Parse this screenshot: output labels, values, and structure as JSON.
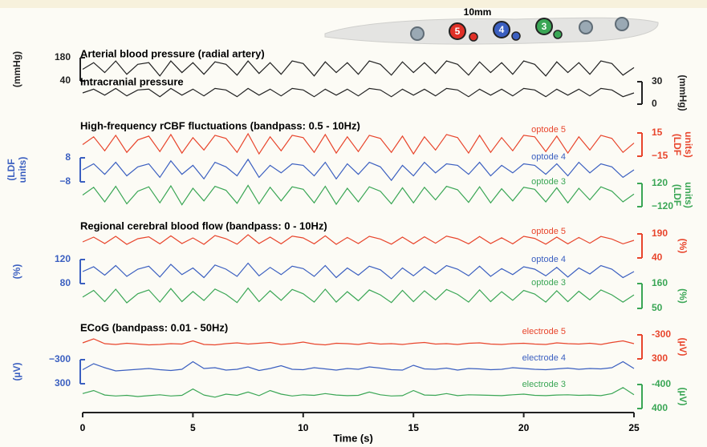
{
  "chart_data": {
    "type": "line",
    "probe": {
      "scale": "10mm",
      "labels": [
        "5",
        "4",
        "3"
      ]
    },
    "x": [
      0,
      0.5,
      1,
      1.5,
      2,
      2.5,
      3,
      3.5,
      4,
      4.5,
      5,
      5.5,
      6,
      6.5,
      7,
      7.5,
      8,
      8.5,
      9,
      9.5,
      10,
      10.5,
      11,
      11.5,
      12,
      12.5,
      13,
      13.5,
      14,
      14.5,
      15,
      15.5,
      16,
      16.5,
      17,
      17.5,
      18,
      18.5,
      19,
      19.5,
      20,
      20.5,
      21,
      21.5,
      22,
      22.5,
      23,
      23.5,
      24,
      24.5,
      25
    ],
    "xlim": [
      0,
      25
    ],
    "xticks": [
      0,
      5,
      10,
      15,
      20,
      25
    ],
    "xlabel": "Time (s)",
    "panels": [
      {
        "series": [
          {
            "name": "Arterial blood pressure (radial artery)",
            "color": "#222222",
            "side": "left",
            "unit": [
              "(mmHg)"
            ],
            "ylim": [
              40,
              180
            ],
            "yticks": [
              180,
              40
            ],
            "values": [
              110,
              150,
              90,
              160,
              80,
              140,
              150,
              70,
              160,
              90,
              150,
              80,
              155,
              140,
              75,
              160,
              85,
              150,
              80,
              160,
              145,
              70,
              155,
              90,
              150,
              80,
              160,
              140,
              75,
              155,
              90,
              150,
              85,
              160,
              140,
              75,
              155,
              90,
              150,
              80,
              160,
              140,
              70,
              155,
              90,
              150,
              80,
              160,
              145,
              75,
              120
            ]
          },
          {
            "name": "Intracranial pressure",
            "color": "#222222",
            "side": "right",
            "unit": [
              "(mmHg)"
            ],
            "ylim": [
              0,
              30
            ],
            "yticks": [
              30,
              0
            ],
            "values": [
              15,
              20,
              12,
              21,
              11,
              19,
              20,
              10,
              21,
              12,
              20,
              11,
              21,
              19,
              10,
              21,
              12,
              20,
              11,
              21,
              19,
              10,
              20,
              12,
              20,
              11,
              21,
              19,
              10,
              20,
              12,
              20,
              11,
              21,
              19,
              10,
              20,
              12,
              20,
              11,
              21,
              19,
              10,
              20,
              12,
              20,
              11,
              21,
              19,
              10,
              15
            ]
          }
        ]
      },
      {
        "title": "High-frequency rCBF fluctuations (bandpass: 0.5 - 10Hz)",
        "series": [
          {
            "name": "optode 5",
            "color": "#e8452c",
            "side": "right",
            "unit": [
              "(LDF",
              "units)"
            ],
            "ylim": [
              -15,
              15
            ],
            "yticks": [
              15,
              {
                "value": -15,
                "label": "−15"
              }
            ],
            "values": [
              0,
              10,
              -8,
              12,
              -10,
              6,
              11,
              -9,
              13,
              -11,
              9,
              -7,
              12,
              8,
              -10,
              14,
              -12,
              10,
              -8,
              12,
              9,
              -10,
              13,
              -11,
              10,
              -9,
              12,
              8,
              -10,
              11,
              -12,
              10,
              -7,
              13,
              9,
              -11,
              12,
              -10,
              9,
              -8,
              12,
              10,
              -9,
              11,
              -11,
              10,
              -7,
              12,
              8,
              -10,
              2
            ]
          },
          {
            "name": "optode 4",
            "color": "#3b5fc0",
            "side": "left",
            "unit": [
              "(LDF",
              "units)"
            ],
            "ylim": [
              -8,
              8
            ],
            "yticks": [
              8,
              {
                "value": -8,
                "label": "−8"
              }
            ],
            "values": [
              0,
              4,
              -3,
              5,
              -4,
              2,
              4,
              -5,
              6,
              -3,
              3,
              -6,
              5,
              2,
              -4,
              7,
              -5,
              3,
              -2,
              4,
              3,
              -4,
              5,
              -6,
              4,
              -3,
              5,
              2,
              -7,
              3,
              -4,
              5,
              -2,
              4,
              3,
              -3,
              5,
              -4,
              3,
              -2,
              4,
              3,
              -3,
              4,
              -4,
              5,
              -2,
              4,
              2,
              -5,
              0
            ]
          },
          {
            "name": "optode 3",
            "color": "#3aa655",
            "side": "right",
            "unit": [
              "(LDF",
              "units)"
            ],
            "ylim": [
              -120,
              120
            ],
            "yticks": [
              120,
              {
                "value": -120,
                "label": "−120"
              }
            ],
            "values": [
              0,
              80,
              -70,
              90,
              -90,
              40,
              85,
              -80,
              95,
              -100,
              70,
              -60,
              90,
              50,
              -85,
              100,
              -90,
              80,
              -60,
              85,
              60,
              -80,
              90,
              -95,
              70,
              -70,
              85,
              40,
              -90,
              75,
              -80,
              80,
              -50,
              90,
              55,
              -75,
              85,
              -80,
              65,
              -60,
              80,
              60,
              -70,
              75,
              -80,
              70,
              -50,
              85,
              40,
              -70,
              10
            ]
          }
        ]
      },
      {
        "title": "Regional cerebral blood flow (bandpass: 0 - 10Hz)",
        "series": [
          {
            "name": "optode 5",
            "color": "#e8452c",
            "side": "right",
            "unit": [
              "(%)"
            ],
            "ylim": [
              40,
              190
            ],
            "yticks": [
              190,
              40
            ],
            "values": [
              140,
              170,
              130,
              175,
              125,
              160,
              172,
              128,
              178,
              130,
              165,
              125,
              180,
              160,
              126,
              185,
              130,
              170,
              128,
              176,
              165,
              128,
              178,
              125,
              168,
              130,
              175,
              158,
              126,
              170,
              128,
              172,
              132,
              176,
              160,
              128,
              174,
              130,
              166,
              128,
              175,
              162,
              126,
              170,
              128,
              168,
              132,
              174,
              158,
              128,
              150
            ]
          },
          {
            "name": "optode 4",
            "color": "#3b5fc0",
            "side": "left",
            "unit": [
              "(%)"
            ],
            "ylim": [
              80,
              120
            ],
            "yticks": [
              120,
              80
            ],
            "values": [
              100,
              108,
              94,
              110,
              92,
              104,
              109,
              91,
              112,
              95,
              106,
              90,
              111,
              104,
              92,
              114,
              93,
              107,
              95,
              109,
              105,
              92,
              110,
              90,
              106,
              94,
              109,
              103,
              88,
              106,
              93,
              108,
              96,
              110,
              104,
              93,
              109,
              92,
              105,
              95,
              108,
              104,
              93,
              107,
              91,
              106,
              96,
              110,
              104,
              90,
              100
            ]
          },
          {
            "name": "optode 3",
            "color": "#3aa655",
            "side": "right",
            "unit": [
              "(%)"
            ],
            "ylim": [
              50,
              160
            ],
            "yticks": [
              160,
              50
            ],
            "values": [
              100,
              130,
              80,
              135,
              75,
              115,
              132,
              78,
              138,
              80,
              125,
              85,
              136,
              112,
              76,
              140,
              80,
              128,
              86,
              134,
              115,
              78,
              135,
              78,
              124,
              84,
              132,
              110,
              76,
              130,
              80,
              128,
              88,
              134,
              112,
              78,
              132,
              80,
              124,
              86,
              130,
              114,
              78,
              128,
              80,
              126,
              88,
              132,
              110,
              78,
              110
            ]
          }
        ]
      },
      {
        "title": "ECoG (bandpass: 0.01 - 50Hz)",
        "series": [
          {
            "name": "electrode 5",
            "color": "#e8452c",
            "side": "right",
            "unit": [
              "(µV)"
            ],
            "ylim": [
              300,
              -300
            ],
            "yticks": [
              {
                "value": -300,
                "label": "-300"
              },
              300
            ],
            "values": [
              -100,
              -200,
              -80,
              -60,
              -90,
              -70,
              -50,
              -60,
              -80,
              -70,
              -150,
              -60,
              -50,
              -80,
              -100,
              -70,
              -90,
              -110,
              -60,
              -80,
              -120,
              -70,
              -50,
              -90,
              -80,
              -60,
              -100,
              -70,
              -80,
              -60,
              -90,
              -110,
              -70,
              -80,
              -60,
              -90,
              -100,
              -70,
              -60,
              -80,
              -90,
              -70,
              -60,
              -100,
              -80,
              -70,
              -90,
              -60,
              -110,
              -150,
              -80
            ]
          },
          {
            "name": "electrode 4",
            "color": "#3b5fc0",
            "side": "left",
            "unit": [
              "(µV)"
            ],
            "ylim": [
              300,
              -300
            ],
            "yticks": [
              {
                "value": -300,
                "label": "−300"
              },
              300
            ],
            "values": [
              -50,
              -200,
              -100,
              -20,
              -40,
              -60,
              -80,
              -50,
              -30,
              -60,
              -250,
              -80,
              -100,
              -40,
              -60,
              -120,
              -30,
              -80,
              -150,
              -60,
              -50,
              -100,
              -70,
              -40,
              -80,
              -60,
              -120,
              -90,
              -50,
              -40,
              -160,
              -70,
              -60,
              -90,
              -40,
              -80,
              -70,
              -50,
              -60,
              -100,
              -80,
              -60,
              -50,
              -70,
              -90,
              -60,
              -80,
              -70,
              -100,
              -250,
              -80
            ]
          },
          {
            "name": "electrode 3",
            "color": "#3aa655",
            "side": "right",
            "unit": [
              "(µV)"
            ],
            "ylim": [
              400,
              -400
            ],
            "yticks": [
              {
                "value": -400,
                "label": "-400"
              },
              400
            ],
            "values": [
              -100,
              -200,
              -50,
              -20,
              -40,
              0,
              -30,
              -60,
              -20,
              -40,
              -250,
              -50,
              20,
              -80,
              -40,
              -150,
              -30,
              -200,
              -80,
              -20,
              -60,
              -40,
              -100,
              -50,
              -30,
              -40,
              -150,
              -60,
              -20,
              -30,
              -200,
              -50,
              -40,
              -100,
              -30,
              -60,
              -50,
              -40,
              -30,
              -60,
              -80,
              -40,
              -30,
              -50,
              -60,
              -40,
              -50,
              -30,
              -100,
              -300,
              -60
            ]
          }
        ]
      }
    ]
  }
}
